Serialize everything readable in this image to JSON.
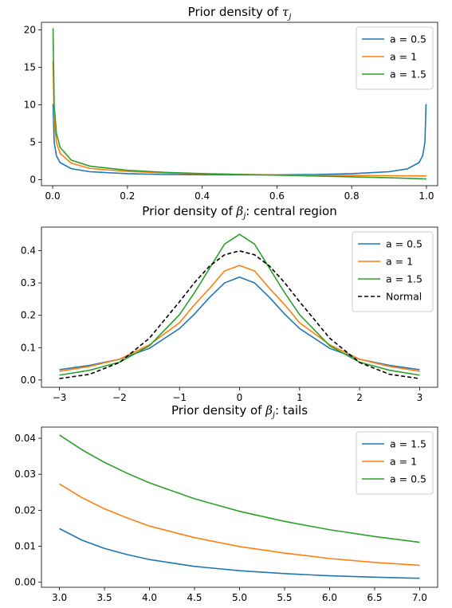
{
  "chart_data": [
    {
      "type": "line",
      "title": {
        "prefix": "Prior density of ",
        "var": "τ",
        "sub": "j",
        "suffix": ""
      },
      "xlim": [
        -0.03,
        1.03
      ],
      "ylim": [
        -0.8,
        21.0
      ],
      "xticks": [
        0,
        0.2,
        0.4,
        0.6,
        0.8,
        1.0
      ],
      "xticklabels": [
        "0.0",
        "0.2",
        "0.4",
        "0.6",
        "0.8",
        "1.0"
      ],
      "yticks": [
        0,
        5,
        10,
        15,
        20
      ],
      "yticklabels": [
        "0",
        "5",
        "10",
        "15",
        "20"
      ],
      "legend_placement": "top-right",
      "series": [
        {
          "name": "a = 0.5",
          "color": "#1f77b4",
          "x": [
            0.001,
            0.004,
            0.01,
            0.02,
            0.05,
            0.1,
            0.2,
            0.3,
            0.4,
            0.5,
            0.6,
            0.7,
            0.8,
            0.9,
            0.95,
            0.98,
            0.99,
            0.996,
            0.999
          ],
          "y": [
            10.1,
            5.0,
            3.2,
            2.27,
            1.46,
            1.06,
            0.8,
            0.69,
            0.65,
            0.64,
            0.65,
            0.69,
            0.8,
            1.06,
            1.46,
            2.27,
            3.2,
            5.0,
            10.1
          ]
        },
        {
          "name": "a = 1",
          "color": "#ff7f0e",
          "x": [
            0.001,
            0.004,
            0.01,
            0.02,
            0.05,
            0.1,
            0.2,
            0.3,
            0.4,
            0.5,
            0.6,
            0.7,
            0.8,
            0.9,
            1.0
          ],
          "y": [
            15.8,
            7.9,
            5.0,
            3.5,
            2.2,
            1.5,
            1.1,
            0.89,
            0.78,
            0.71,
            0.63,
            0.59,
            0.56,
            0.53,
            0.5
          ]
        },
        {
          "name": "a = 1.5",
          "color": "#2ca02c",
          "x": [
            0.001,
            0.004,
            0.01,
            0.02,
            0.05,
            0.1,
            0.2,
            0.3,
            0.4,
            0.5,
            0.6,
            0.7,
            0.8,
            0.9,
            1.0
          ],
          "y": [
            20.2,
            10.0,
            6.2,
            4.3,
            2.6,
            1.8,
            1.25,
            0.98,
            0.82,
            0.7,
            0.6,
            0.49,
            0.38,
            0.26,
            0.1
          ]
        }
      ]
    },
    {
      "type": "line",
      "title": {
        "prefix": "Prior density of ",
        "var": "β",
        "sub": "j",
        "suffix": ": central region"
      },
      "xlim": [
        -3.3,
        3.3
      ],
      "ylim": [
        -0.0225,
        0.4725
      ],
      "xticks": [
        -3,
        -2,
        -1,
        0,
        1,
        2,
        3
      ],
      "xticklabels": [
        "−3",
        "−2",
        "−1",
        "0",
        "1",
        "2",
        "3"
      ],
      "yticks": [
        0.0,
        0.1,
        0.2,
        0.3,
        0.4
      ],
      "yticklabels": [
        "0.0",
        "0.1",
        "0.2",
        "0.3",
        "0.4"
      ],
      "legend_placement": "top-right",
      "series": [
        {
          "name": "a = 0.5",
          "color": "#1f77b4",
          "x": [
            -3,
            -2.5,
            -2,
            -1.5,
            -1,
            -0.75,
            -0.5,
            -0.25,
            0,
            0.25,
            0.5,
            0.75,
            1,
            1.5,
            2,
            2.5,
            3
          ],
          "y": [
            0.032,
            0.045,
            0.064,
            0.098,
            0.159,
            0.204,
            0.255,
            0.3,
            0.318,
            0.3,
            0.255,
            0.204,
            0.159,
            0.098,
            0.064,
            0.045,
            0.032
          ]
        },
        {
          "name": "a = 1",
          "color": "#ff7f0e",
          "x": [
            -3,
            -2.5,
            -2,
            -1.5,
            -1,
            -0.75,
            -0.5,
            -0.25,
            0,
            0.25,
            0.5,
            0.75,
            1,
            1.5,
            2,
            2.5,
            3
          ],
          "y": [
            0.027,
            0.042,
            0.064,
            0.109,
            0.177,
            0.233,
            0.283,
            0.337,
            0.354,
            0.337,
            0.283,
            0.233,
            0.177,
            0.109,
            0.064,
            0.042,
            0.027
          ]
        },
        {
          "name": "a = 1.5",
          "color": "#2ca02c",
          "x": [
            -3,
            -2.5,
            -2,
            -1.5,
            -1,
            -0.75,
            -0.5,
            -0.25,
            0,
            0.25,
            0.5,
            0.75,
            1,
            1.5,
            2,
            2.5,
            3
          ],
          "y": [
            0.015,
            0.03,
            0.055,
            0.106,
            0.202,
            0.27,
            0.345,
            0.42,
            0.45,
            0.42,
            0.345,
            0.27,
            0.202,
            0.106,
            0.055,
            0.03,
            0.015
          ]
        },
        {
          "name": "Normal",
          "color": "#000000",
          "dashed": true,
          "x": [
            -3,
            -2.5,
            -2,
            -1.5,
            -1,
            -0.75,
            -0.5,
            -0.25,
            0,
            0.25,
            0.5,
            0.75,
            1,
            1.5,
            2,
            2.5,
            3
          ],
          "y": [
            0.0044,
            0.0175,
            0.054,
            0.1295,
            0.242,
            0.301,
            0.352,
            0.387,
            0.399,
            0.387,
            0.352,
            0.301,
            0.242,
            0.1295,
            0.054,
            0.0175,
            0.0044
          ]
        }
      ]
    },
    {
      "type": "line",
      "title": {
        "prefix": "Prior density of ",
        "var": "β",
        "sub": "j",
        "suffix": ": tails"
      },
      "xlim": [
        2.8,
        7.2
      ],
      "ylim": [
        -0.0014,
        0.0431
      ],
      "xticks": [
        3.0,
        3.5,
        4.0,
        4.5,
        5.0,
        5.5,
        6.0,
        6.5,
        7.0
      ],
      "xticklabels": [
        "3.0",
        "3.5",
        "4.0",
        "4.5",
        "5.0",
        "5.5",
        "6.0",
        "6.5",
        "7.0"
      ],
      "yticks": [
        0.0,
        0.01,
        0.02,
        0.03,
        0.04
      ],
      "yticklabels": [
        "0.00",
        "0.01",
        "0.02",
        "0.03",
        "0.04"
      ],
      "legend_placement": "top-right",
      "series": [
        {
          "name": "a = 1.5",
          "color": "#1f77b4",
          "x": [
            3.0,
            3.25,
            3.5,
            3.75,
            4.0,
            4.5,
            5.0,
            5.5,
            6.0,
            6.5,
            7.0
          ],
          "y": [
            0.0149,
            0.0117,
            0.0094,
            0.0077,
            0.0063,
            0.0044,
            0.0032,
            0.0024,
            0.0018,
            0.0014,
            0.0011
          ]
        },
        {
          "name": "a = 1",
          "color": "#ff7f0e",
          "x": [
            3.0,
            3.25,
            3.5,
            3.75,
            4.0,
            4.5,
            5.0,
            5.5,
            6.0,
            6.5,
            7.0
          ],
          "y": [
            0.0273,
            0.0235,
            0.0204,
            0.0179,
            0.0156,
            0.0124,
            0.0099,
            0.0081,
            0.0066,
            0.0055,
            0.0047
          ]
        },
        {
          "name": "a = 0.5",
          "color": "#2ca02c",
          "x": [
            3.0,
            3.25,
            3.5,
            3.75,
            4.0,
            4.5,
            5.0,
            5.5,
            6.0,
            6.5,
            7.0
          ],
          "y": [
            0.0409,
            0.0368,
            0.0333,
            0.0303,
            0.0276,
            0.0232,
            0.0197,
            0.0169,
            0.0146,
            0.0127,
            0.0111
          ]
        }
      ]
    }
  ]
}
